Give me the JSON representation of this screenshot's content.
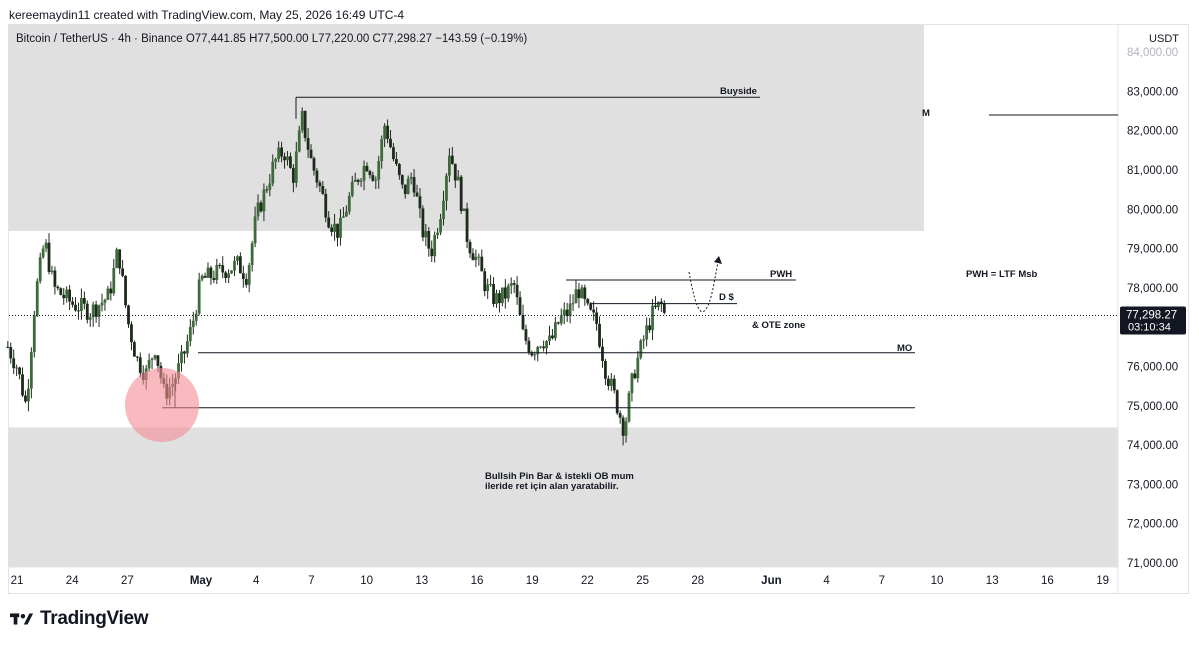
{
  "credit": "kereemaydin11 created with TradingView.com, May 25, 2026 16:49 UTC-4",
  "symbol_line": "Bitcoin / TetherUS · 4h · Binance  O77,441.85  H77,500.00  L77,220.00  C77,298.27  −143.59 (−0.19%)",
  "currency": "USDT",
  "logo_text": "TradingView",
  "colors": {
    "bull": "#22ab94",
    "candle_body": "#2e3b2c",
    "zone": "#e0e0e0",
    "circle": "#f48a94",
    "line": "#131722",
    "price_tag_bg": "#131722"
  },
  "chart_data": {
    "type": "candlestick",
    "title": "Bitcoin / TetherUS · 4h · Binance",
    "ylim": [
      70700,
      84300
    ],
    "y_ticks": [
      "71,000.00",
      "72,000.00",
      "73,000.00",
      "74,000.00",
      "75,000.00",
      "76,000.00",
      "77,000.00",
      "78,000.00",
      "79,000.00",
      "80,000.00",
      "81,000.00",
      "82,000.00",
      "83,000.00"
    ],
    "y_tick_values": [
      71000,
      72000,
      73000,
      74000,
      75000,
      76000,
      77000,
      78000,
      79000,
      80000,
      81000,
      82000,
      83000
    ],
    "x_ticks": [
      "21",
      "24",
      "27",
      "May",
      "4",
      "7",
      "10",
      "13",
      "16",
      "19",
      "22",
      "25",
      "28",
      "Jun",
      "4",
      "7",
      "10",
      "13",
      "16",
      "19"
    ],
    "x_tick_days": [
      -10,
      -7,
      -4,
      0,
      3,
      6,
      9,
      12,
      15,
      18,
      21,
      24,
      27,
      31,
      34,
      37,
      40,
      43,
      46,
      49
    ],
    "last_price": "77,298.27",
    "countdown": "03:10:34",
    "last_price_value": 77298.27,
    "price_path": [
      [
        -10.5,
        76500
      ],
      [
        -10,
        76000
      ],
      [
        -9.5,
        75000
      ],
      [
        -9,
        77800
      ],
      [
        -8.5,
        79200
      ],
      [
        -8,
        78000
      ],
      [
        -7,
        77600
      ],
      [
        -6,
        77400
      ],
      [
        -5,
        77800
      ],
      [
        -4.5,
        79000
      ],
      [
        -4,
        77200
      ],
      [
        -3.5,
        76200
      ],
      [
        -3,
        75800
      ],
      [
        -2.5,
        76500
      ],
      [
        -2,
        75300
      ],
      [
        -1.5,
        75600
      ],
      [
        -1,
        76200
      ],
      [
        -0.5,
        77000
      ],
      [
        0,
        78200
      ],
      [
        1,
        78400
      ],
      [
        2,
        78600
      ],
      [
        2.5,
        78300
      ],
      [
        3,
        79800
      ],
      [
        3.5,
        80500
      ],
      [
        4,
        81200
      ],
      [
        4.5,
        81500
      ],
      [
        5,
        80800
      ],
      [
        5.5,
        82300
      ],
      [
        6,
        81200
      ],
      [
        6.5,
        80500
      ],
      [
        7,
        79700
      ],
      [
        7.5,
        79400
      ],
      [
        8,
        80200
      ],
      [
        8.5,
        80800
      ],
      [
        9,
        81200
      ],
      [
        9.5,
        80800
      ],
      [
        10,
        82200
      ],
      [
        10.5,
        81200
      ],
      [
        11,
        80400
      ],
      [
        11.5,
        80900
      ],
      [
        12,
        79500
      ],
      [
        12.5,
        78900
      ],
      [
        13,
        79900
      ],
      [
        13.5,
        81500
      ],
      [
        14,
        80600
      ],
      [
        14.5,
        79200
      ],
      [
        15,
        78700
      ],
      [
        15.5,
        78000
      ],
      [
        16,
        77700
      ],
      [
        16.5,
        77800
      ],
      [
        17,
        78100
      ],
      [
        17.5,
        76800
      ],
      [
        18,
        76400
      ],
      [
        18.5,
        76700
      ],
      [
        19,
        76600
      ],
      [
        19.5,
        77200
      ],
      [
        20,
        77400
      ],
      [
        20.5,
        78000
      ],
      [
        21,
        77400
      ],
      [
        21.5,
        77100
      ],
      [
        22,
        75900
      ],
      [
        22.5,
        75200
      ],
      [
        23,
        74400
      ],
      [
        23.5,
        75800
      ],
      [
        24,
        76600
      ],
      [
        24.5,
        77300
      ],
      [
        25,
        77600
      ],
      [
        25.2,
        77300
      ]
    ],
    "annotations": {
      "buyside": "Buyside",
      "m": "M",
      "pwh": "PWH",
      "d_s": "D $",
      "ote": "& OTE zone",
      "mo": "MO",
      "pwh_ltf": "PWH = LTF Msb",
      "note_line1": "Bullsih Pin Bar & istekli OB mum",
      "note_line2": "ileride ret için alan yaratabilir.",
      "buyside_level": 82850,
      "m_level": 82400,
      "pwh_level": 78200,
      "ds_level": 77600,
      "mo_level": 76350,
      "low_level": 74950,
      "upper_zone": [
        79450,
        84300
      ],
      "lower_zone": [
        70700,
        74450
      ]
    }
  }
}
